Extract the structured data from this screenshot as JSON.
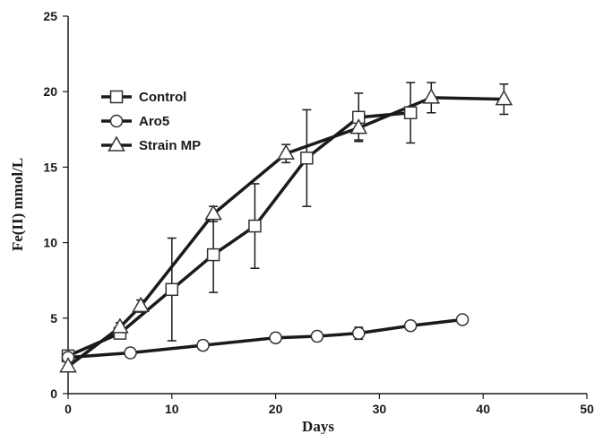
{
  "chart_data": {
    "type": "line",
    "title": "",
    "xlabel": "Days",
    "ylabel": "Fe(II) mmol/L",
    "xlim": [
      0,
      50
    ],
    "ylim": [
      0,
      25
    ],
    "xticks": [
      0,
      10,
      20,
      30,
      40,
      50
    ],
    "yticks": [
      0,
      5,
      10,
      15,
      20,
      25
    ],
    "grid": false,
    "legend_position": "top-left",
    "series": [
      {
        "name": "Control",
        "marker": "square",
        "x": [
          0,
          5,
          10,
          14,
          18,
          23,
          28,
          33
        ],
        "y": [
          2.5,
          4.0,
          6.9,
          9.2,
          11.1,
          15.6,
          18.3,
          18.6
        ],
        "error": [
          0,
          0,
          3.4,
          2.5,
          2.8,
          3.2,
          1.6,
          2.0
        ]
      },
      {
        "name": "Aro5",
        "marker": "circle",
        "x": [
          0,
          6,
          13,
          20,
          24,
          28,
          33,
          38
        ],
        "y": [
          2.4,
          2.7,
          3.2,
          3.7,
          3.8,
          4.0,
          4.5,
          4.9
        ],
        "error": [
          0,
          0.3,
          0.3,
          0.3,
          0.3,
          0.4,
          0.2,
          0
        ]
      },
      {
        "name": "Strain MP",
        "marker": "triangle",
        "x": [
          0,
          5,
          7,
          14,
          21,
          28,
          35,
          42
        ],
        "y": [
          1.8,
          4.4,
          5.8,
          11.9,
          15.9,
          17.6,
          19.6,
          19.5
        ],
        "error": [
          0,
          0.3,
          0.4,
          0.5,
          0.6,
          0.8,
          1.0,
          1.0
        ]
      }
    ]
  }
}
